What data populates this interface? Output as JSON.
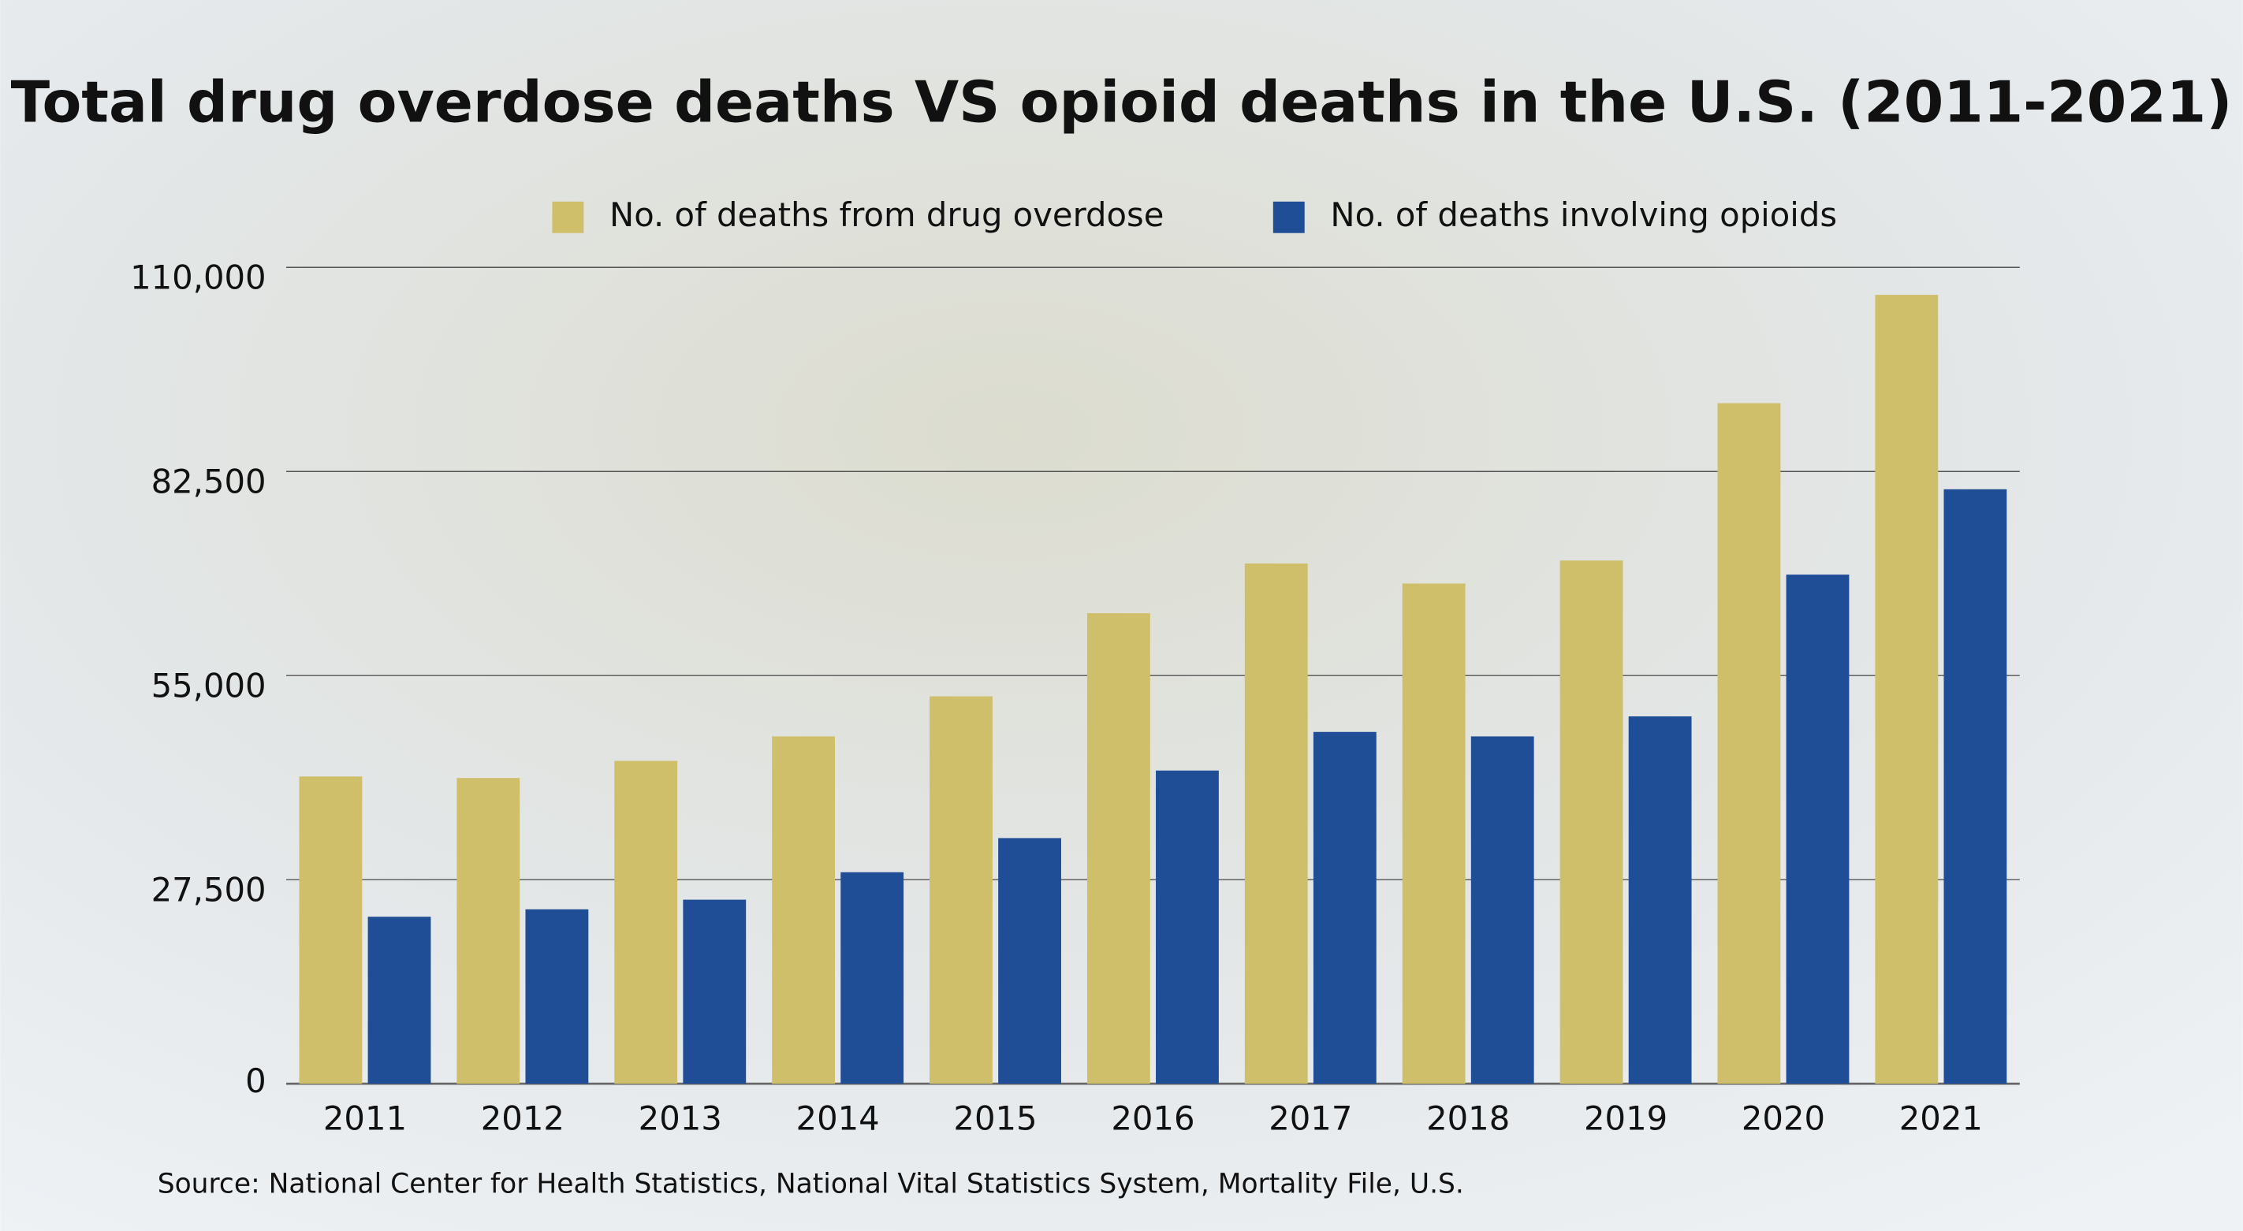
{
  "chart_data": {
    "type": "bar",
    "title": "Total drug overdose deaths VS opioid deaths in the U.S. (2011-2021)",
    "categories": [
      "2011",
      "2012",
      "2013",
      "2014",
      "2015",
      "2016",
      "2017",
      "2018",
      "2019",
      "2020",
      "2021"
    ],
    "series": [
      {
        "name": "No. of deaths from drug overdose",
        "color": "#cfbf6a",
        "values": [
          41400,
          41200,
          43500,
          46800,
          52200,
          63400,
          70100,
          67400,
          70500,
          91700,
          106300
        ]
      },
      {
        "name": "No. of deaths involving opioids",
        "color": "#1f4e96",
        "values": [
          22500,
          23500,
          24800,
          28500,
          33100,
          42200,
          47400,
          46800,
          49500,
          68600,
          80100
        ]
      }
    ],
    "ylim": [
      0,
      110000
    ],
    "yticks": [
      0,
      {
        "value": 27500,
        "label": "27,500"
      },
      {
        "value": 55000,
        "label": "55,000"
      },
      {
        "value": 82500,
        "label": "82,500"
      },
      {
        "value": 110000,
        "label": "110,000"
      }
    ],
    "grid": true,
    "legend": "top",
    "source": "Source: National Center for Health Statistics, National Vital Statistics System, Mortality File, U.S."
  }
}
